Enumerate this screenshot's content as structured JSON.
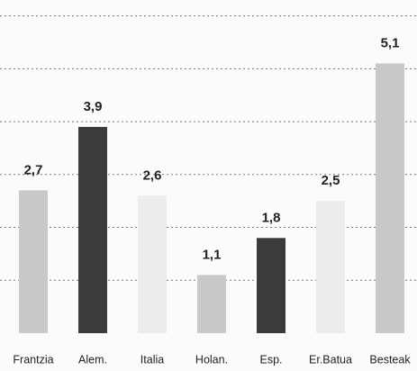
{
  "chart_data": {
    "type": "bar",
    "categories": [
      "Frantzia",
      "Alem.",
      "Italia",
      "Holan.",
      "Esp.",
      "Er.Batua",
      "Besteak"
    ],
    "values": [
      2.7,
      3.9,
      2.6,
      1.1,
      1.8,
      2.5,
      5.1
    ],
    "value_labels": [
      "2,7",
      "3,9",
      "2,6",
      "1,1",
      "1,8",
      "2,5",
      "5,1"
    ],
    "colors": [
      "#c9c9c9",
      "#3b3b3b",
      "#ececec",
      "#c9c9c9",
      "#3b3b3b",
      "#ececec",
      "#c9c9c9"
    ],
    "ylim": [
      0,
      6.3
    ],
    "yticks": [
      1,
      2,
      3,
      4,
      5,
      6
    ],
    "grid": true
  }
}
